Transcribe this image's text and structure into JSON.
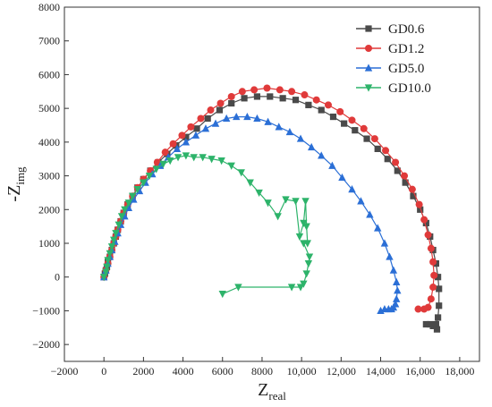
{
  "chart_data": {
    "type": "line",
    "title": "",
    "xlabel": {
      "main": "Z",
      "sub": "real"
    },
    "ylabel": {
      "prefix": "-Z",
      "sub": "img"
    },
    "xlim": [
      -2000,
      19000
    ],
    "ylim": [
      -2500,
      8000
    ],
    "xticks": [
      -2000,
      0,
      2000,
      4000,
      6000,
      8000,
      10000,
      12000,
      14000,
      16000,
      18000
    ],
    "xtick_labels": [
      "−2000",
      "0",
      "2000",
      "4000",
      "6000",
      "8000",
      "10,000",
      "12,000",
      "14,000",
      "16,000",
      "18,000"
    ],
    "yticks": [
      -2000,
      -1000,
      0,
      1000,
      2000,
      3000,
      4000,
      5000,
      6000,
      7000,
      8000
    ],
    "ytick_labels": [
      "−2000",
      "−1000",
      "0",
      "1000",
      "2000",
      "3000",
      "4000",
      "5000",
      "6000",
      "7000",
      "8000"
    ],
    "grid": false,
    "legend_position": "top-right",
    "series": [
      {
        "name": "GD0.6",
        "color": "#4a4a4a",
        "marker": "square",
        "x": [
          0,
          50,
          100,
          150,
          200,
          300,
          400,
          500,
          600,
          700,
          850,
          1000,
          1200,
          1450,
          1700,
          2000,
          2350,
          2750,
          3200,
          3650,
          4150,
          4700,
          5250,
          5850,
          6450,
          7100,
          7750,
          8400,
          9050,
          9700,
          10350,
          11000,
          11600,
          12150,
          12700,
          13300,
          13850,
          14350,
          14850,
          15250,
          15650,
          16000,
          16300,
          16500,
          16650,
          16800,
          16900,
          16950,
          16950,
          16900,
          16800,
          16650,
          16500,
          16300,
          16850
        ],
        "y": [
          0,
          100,
          200,
          300,
          450,
          600,
          800,
          1000,
          1200,
          1400,
          1650,
          1900,
          2150,
          2400,
          2650,
          2900,
          3150,
          3400,
          3650,
          3900,
          4150,
          4400,
          4700,
          4950,
          5150,
          5300,
          5350,
          5350,
          5300,
          5250,
          5100,
          4950,
          4750,
          4550,
          4350,
          4100,
          3800,
          3500,
          3150,
          2800,
          2400,
          2000,
          1600,
          1200,
          800,
          400,
          0,
          -350,
          -850,
          -1200,
          -1400,
          -1450,
          -1400,
          -1400,
          -1550
        ]
      },
      {
        "name": "GD1.2",
        "color": "#e03a3a",
        "marker": "circle",
        "x": [
          0,
          100,
          200,
          300,
          400,
          500,
          600,
          700,
          850,
          1000,
          1200,
          1450,
          1700,
          2000,
          2350,
          2700,
          3100,
          3500,
          3950,
          4400,
          4900,
          5400,
          5900,
          6450,
          7000,
          7600,
          8250,
          8900,
          9500,
          10150,
          10750,
          11350,
          11950,
          12550,
          13150,
          13700,
          14250,
          14750,
          15200,
          15600,
          15950,
          16200,
          16400,
          16550,
          16650,
          16700,
          16650,
          16550,
          16400,
          16200,
          15900
        ],
        "y": [
          0,
          200,
          400,
          600,
          800,
          1000,
          1200,
          1400,
          1650,
          1900,
          2150,
          2400,
          2650,
          2900,
          3150,
          3400,
          3700,
          3950,
          4200,
          4450,
          4700,
          4950,
          5150,
          5350,
          5500,
          5550,
          5600,
          5550,
          5500,
          5400,
          5250,
          5100,
          4900,
          4650,
          4400,
          4100,
          3750,
          3400,
          3000,
          2600,
          2150,
          1700,
          1250,
          850,
          450,
          50,
          -300,
          -650,
          -900,
          -950,
          -950
        ]
      },
      {
        "name": "GD5.0",
        "color": "#2b6fd6",
        "marker": "triangle-up",
        "x": [
          0,
          100,
          200,
          300,
          400,
          550,
          700,
          850,
          1050,
          1250,
          1500,
          1800,
          2100,
          2450,
          2850,
          3250,
          3700,
          4150,
          4650,
          5150,
          5650,
          6200,
          6700,
          7250,
          7750,
          8300,
          8850,
          9400,
          9950,
          10500,
          11000,
          11550,
          12050,
          12550,
          13000,
          13450,
          13850,
          14200,
          14450,
          14650,
          14800,
          14850,
          14800,
          14750,
          14650,
          14550,
          14400,
          14200,
          14000
        ],
        "y": [
          0,
          200,
          400,
          600,
          800,
          1050,
          1300,
          1550,
          1800,
          2050,
          2300,
          2550,
          2800,
          3050,
          3300,
          3550,
          3800,
          4000,
          4200,
          4400,
          4550,
          4700,
          4750,
          4750,
          4700,
          4600,
          4450,
          4300,
          4100,
          3850,
          3600,
          3300,
          2950,
          2600,
          2250,
          1850,
          1450,
          1000,
          600,
          200,
          -150,
          -400,
          -650,
          -800,
          -900,
          -950,
          -950,
          -950,
          -1000
        ]
      },
      {
        "name": "GD10.0",
        "color": "#2db36a",
        "marker": "triangle-down",
        "x": [
          0,
          100,
          150,
          200,
          300,
          400,
          500,
          600,
          750,
          900,
          1050,
          1250,
          1450,
          1700,
          2000,
          2300,
          2650,
          3000,
          3350,
          3750,
          4150,
          4550,
          5000,
          5450,
          5950,
          6450,
          6950,
          7400,
          7850,
          8300,
          8800,
          9200,
          9700,
          9900,
          10100,
          10200,
          10250,
          10300,
          10100,
          10400,
          10350,
          10250,
          10100,
          9950,
          9500,
          6800,
          6000
        ],
        "y": [
          0,
          150,
          300,
          500,
          700,
          900,
          1100,
          1300,
          1550,
          1800,
          2000,
          2200,
          2400,
          2600,
          2800,
          3000,
          3200,
          3350,
          3450,
          3550,
          3600,
          3550,
          3550,
          3500,
          3450,
          3300,
          3100,
          2800,
          2500,
          2200,
          1800,
          2300,
          2250,
          1200,
          1600,
          2250,
          1500,
          1000,
          1000,
          600,
          400,
          100,
          -200,
          -300,
          -300,
          -300,
          -500
        ]
      }
    ]
  }
}
